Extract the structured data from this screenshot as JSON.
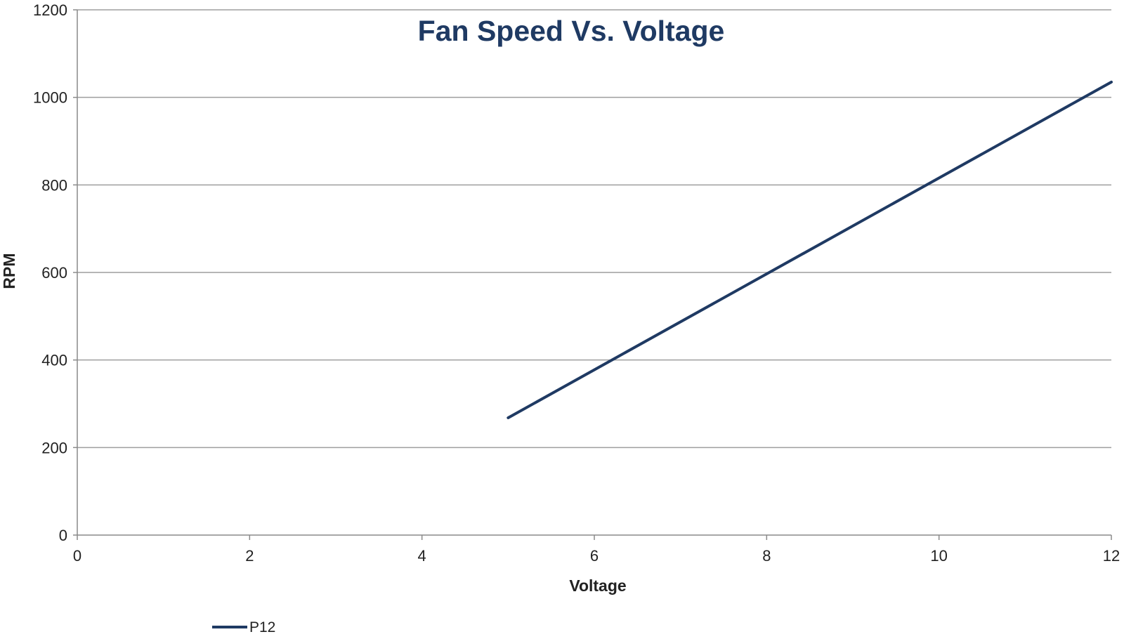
{
  "chart_data": {
    "type": "line",
    "title": "Fan Speed Vs. Voltage",
    "xlabel": "Voltage",
    "ylabel": "RPM",
    "xlim": [
      0,
      12
    ],
    "ylim": [
      0,
      1200
    ],
    "xticks": [
      0,
      2,
      4,
      6,
      8,
      10,
      12
    ],
    "yticks": [
      0,
      200,
      400,
      600,
      800,
      1000,
      1200
    ],
    "grid": "horizontal",
    "legend_position": "bottom-left",
    "series": [
      {
        "name": "P12",
        "color": "#1f3a63",
        "x": [
          5,
          12
        ],
        "y": [
          268,
          1035
        ]
      }
    ]
  },
  "colors": {
    "title": "#1f3a63",
    "series": "#1f3a63"
  }
}
